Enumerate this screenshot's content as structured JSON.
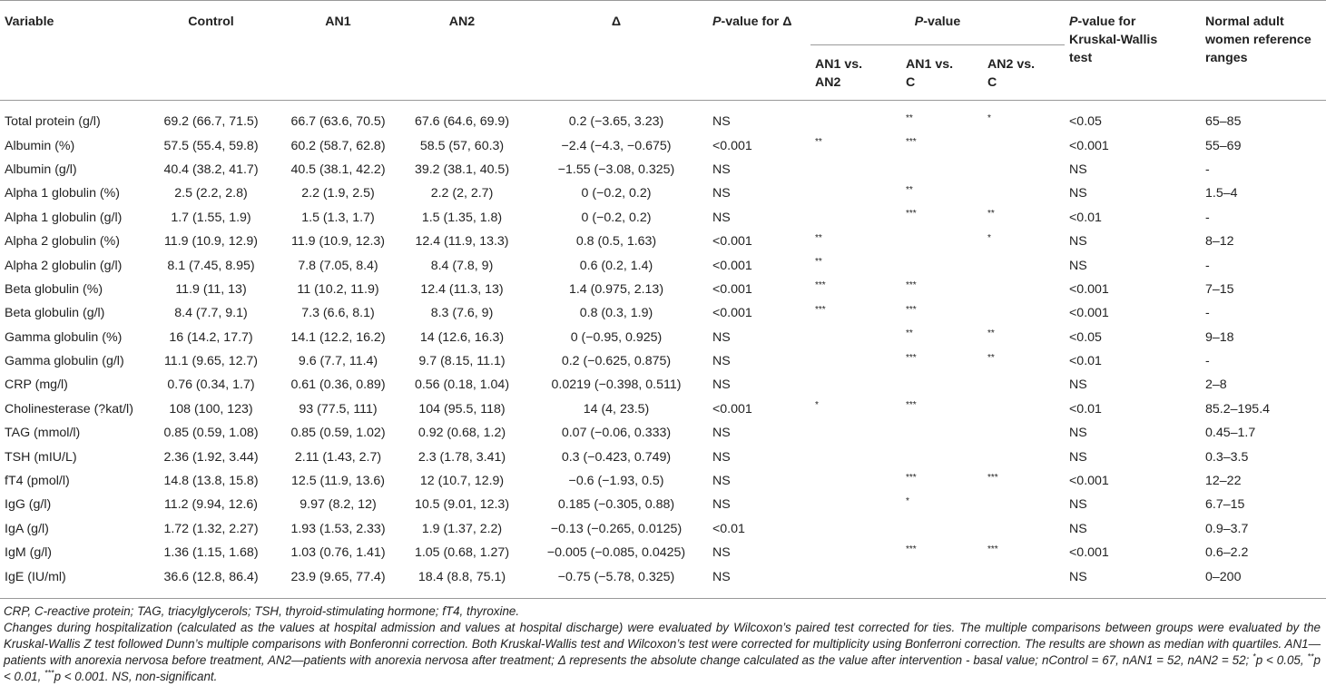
{
  "header": {
    "variable": "Variable",
    "control": "Control",
    "an1": "AN1",
    "an2": "AN2",
    "delta": "Δ",
    "p_delta": [
      "P",
      "-value for Δ"
    ],
    "p_value": [
      "P",
      "-value"
    ],
    "comparisons": [
      "AN1 vs. AN2",
      "AN1 vs. C",
      "AN2 vs. C"
    ],
    "p_kw": [
      "P",
      "-value for Kruskal-Wallis test"
    ],
    "reference": "Normal adult women reference ranges"
  },
  "table": {
    "rows": [
      [
        "Total protein (g/l)",
        "69.2 (66.7, 71.5)",
        "66.7 (63.6, 70.5)",
        "67.6 (64.6, 69.9)",
        "0.2 (−3.65, 3.23)",
        "NS",
        null,
        "**",
        "*",
        "<0.05",
        "65–85"
      ],
      [
        "Albumin (%)",
        "57.5 (55.4, 59.8)",
        "60.2 (58.7, 62.8)",
        "58.5 (57, 60.3)",
        "−2.4 (−4.3, −0.675)",
        "<0.001",
        "**",
        "***",
        null,
        "<0.001",
        "55–69"
      ],
      [
        "Albumin (g/l)",
        "40.4 (38.2, 41.7)",
        "40.5 (38.1, 42.2)",
        "39.2 (38.1, 40.5)",
        "−1.55 (−3.08, 0.325)",
        "NS",
        null,
        null,
        null,
        "NS",
        "-"
      ],
      [
        "Alpha 1 globulin (%)",
        "2.5 (2.2, 2.8)",
        "2.2 (1.9, 2.5)",
        "2.2 (2, 2.7)",
        "0 (−0.2, 0.2)",
        "NS",
        null,
        "**",
        null,
        "NS",
        "1.5–4"
      ],
      [
        "Alpha 1 globulin (g/l)",
        "1.7 (1.55, 1.9)",
        "1.5 (1.3, 1.7)",
        "1.5 (1.35, 1.8)",
        "0 (−0.2, 0.2)",
        "NS",
        null,
        "***",
        "**",
        "<0.01",
        "-"
      ],
      [
        "Alpha 2 globulin (%)",
        "11.9 (10.9, 12.9)",
        "11.9 (10.9, 12.3)",
        "12.4 (11.9, 13.3)",
        "0.8 (0.5, 1.63)",
        "<0.001",
        "**",
        null,
        "*",
        "NS",
        "8–12"
      ],
      [
        "Alpha 2 globulin (g/l)",
        "8.1 (7.45, 8.95)",
        "7.8 (7.05, 8.4)",
        "8.4 (7.8, 9)",
        "0.6 (0.2, 1.4)",
        "<0.001",
        "**",
        null,
        null,
        "NS",
        "-"
      ],
      [
        "Beta globulin (%)",
        "11.9 (11, 13)",
        "11 (10.2, 11.9)",
        "12.4 (11.3, 13)",
        "1.4 (0.975, 2.13)",
        "<0.001",
        "***",
        "***",
        null,
        "<0.001",
        "7–15"
      ],
      [
        "Beta globulin (g/l)",
        "8.4 (7.7, 9.1)",
        "7.3 (6.6, 8.1)",
        "8.3 (7.6, 9)",
        "0.8 (0.3, 1.9)",
        "<0.001",
        "***",
        "***",
        null,
        "<0.001",
        "-"
      ],
      [
        "Gamma globulin (%)",
        "16 (14.2, 17.7)",
        "14.1 (12.2, 16.2)",
        "14 (12.6, 16.3)",
        "0 (−0.95, 0.925)",
        "NS",
        null,
        "**",
        "**",
        "<0.05",
        "9–18"
      ],
      [
        "Gamma globulin (g/l)",
        "11.1 (9.65, 12.7)",
        "9.6 (7.7, 11.4)",
        "9.7 (8.15, 11.1)",
        "0.2 (−0.625, 0.875)",
        "NS",
        null,
        "***",
        "**",
        "<0.01",
        "-"
      ],
      [
        "CRP (mg/l)",
        "0.76 (0.34, 1.7)",
        "0.61 (0.36, 0.89)",
        "0.56 (0.18, 1.04)",
        "0.0219 (−0.398, 0.511)",
        "NS",
        null,
        null,
        null,
        "NS",
        "2–8"
      ],
      [
        "Cholinesterase (?kat/l)",
        "108 (100, 123)",
        "93 (77.5, 111)",
        "104 (95.5, 118)",
        "14 (4, 23.5)",
        "<0.001",
        "*",
        "***",
        null,
        "<0.01",
        "85.2–195.4"
      ],
      [
        "TAG (mmol/l)",
        "0.85 (0.59, 1.08)",
        "0.85 (0.59, 1.02)",
        "0.92 (0.68, 1.2)",
        "0.07 (−0.06, 0.333)",
        "NS",
        null,
        null,
        null,
        "NS",
        "0.45–1.7"
      ],
      [
        "TSH (mIU/L)",
        "2.36 (1.92, 3.44)",
        "2.11 (1.43, 2.7)",
        "2.3 (1.78, 3.41)",
        "0.3 (−0.423, 0.749)",
        "NS",
        null,
        null,
        null,
        "NS",
        "0.3–3.5"
      ],
      [
        "fT4 (pmol/l)",
        "14.8 (13.8, 15.8)",
        "12.5 (11.9, 13.6)",
        "12 (10.7, 12.9)",
        "−0.6 (−1.93, 0.5)",
        "NS",
        null,
        "***",
        "***",
        "<0.001",
        "12–22"
      ],
      [
        "IgG (g/l)",
        "11.2 (9.94, 12.6)",
        "9.97 (8.2, 12)",
        "10.5 (9.01, 12.3)",
        "0.185 (−0.305, 0.88)",
        "NS",
        null,
        "*",
        null,
        "NS",
        "6.7–15"
      ],
      [
        "IgA (g/l)",
        "1.72 (1.32, 2.27)",
        "1.93 (1.53, 2.33)",
        "1.9 (1.37, 2.2)",
        "−0.13 (−0.265, 0.0125)",
        "<0.01",
        null,
        null,
        null,
        "NS",
        "0.9–3.7"
      ],
      [
        "IgM (g/l)",
        "1.36 (1.15, 1.68)",
        "1.03 (0.76, 1.41)",
        "1.05 (0.68, 1.27)",
        "−0.005 (−0.085, 0.0425)",
        "NS",
        null,
        "***",
        "***",
        "<0.001",
        "0.6–2.2"
      ],
      [
        "IgE (IU/ml)",
        "36.6 (12.8, 86.4)",
        "23.9 (9.65, 77.4)",
        "18.4 (8.8, 75.1)",
        "−0.75 (−5.78, 0.325)",
        "NS",
        null,
        null,
        null,
        "NS",
        "0–200"
      ]
    ]
  },
  "footnotes": [
    [
      "CRP, C-reactive protein; TAG, triacylglycerols; TSH, thyroid-stimulating hormone; fT4, thyroxine."
    ],
    [
      "Changes during hospitalization (calculated as the values at hospital admission and values at hospital discharge) were evaluated by Wilcoxon’s paired test corrected for ties. The multiple comparisons between groups were evaluated by the Kruskal-Wallis Z test followed Dunn’s multiple comparisons with Bonferonni correction. Both Kruskal-Wallis test and Wilcoxon’s test were corrected for multiplicity using Bonferroni correction. The results are shown as median with quartiles. AN1—patients with anorexia nervosa before treatment, AN2—patients with anorexia nervosa after treatment; Δ represents the absolute change calculated as the value after intervention - basal value; nControl = 67, nAN1 = 52, nAN2 = 52; ",
      "*",
      "p < 0.05, ",
      "**",
      "p < 0.01, ",
      "***",
      "p < 0.001. NS, non-significant."
    ]
  ]
}
